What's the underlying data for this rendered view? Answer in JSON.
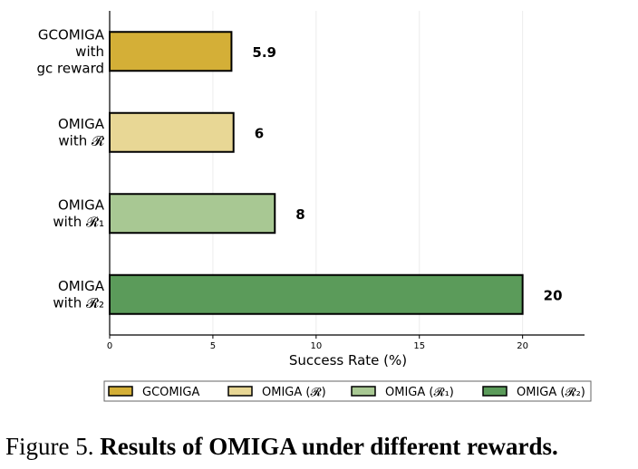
{
  "chart_data": {
    "type": "bar",
    "orientation": "horizontal",
    "categories": [
      {
        "lines": [
          "GCOMIGA",
          "with",
          "gc reward"
        ]
      },
      {
        "lines": [
          "OMIGA",
          "with 𝓡"
        ]
      },
      {
        "lines": [
          "OMIGA",
          "with 𝓡₁"
        ]
      },
      {
        "lines": [
          "OMIGA",
          "with 𝓡₂"
        ]
      }
    ],
    "values": [
      5.9,
      6,
      8,
      20
    ],
    "value_labels": [
      "5.9",
      "6",
      "8",
      "20"
    ],
    "colors": [
      "#d4af37",
      "#e8d795",
      "#a8c893",
      "#5b9b5a"
    ],
    "xlabel": "Success Rate (%)",
    "xlim": [
      0,
      23
    ],
    "xticks": [
      "0",
      "5",
      "10",
      "15",
      "20"
    ],
    "grid": "vertical",
    "legend": {
      "placement": "bottom",
      "entries": [
        "GCOMIGA",
        "OMIGA (𝓡)",
        "OMIGA (𝓡₁)",
        "OMIGA (𝓡₂)"
      ]
    }
  },
  "caption": {
    "prefix": "Figure 5.",
    "text": "Results of OMIGA under different rewards."
  }
}
